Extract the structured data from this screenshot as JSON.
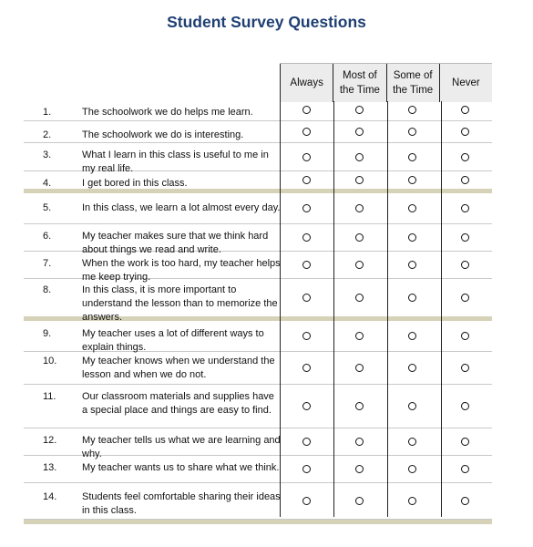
{
  "title": "Student Survey Questions",
  "columns": [
    {
      "line1": "Always",
      "line2": ""
    },
    {
      "line1": "Most of",
      "line2": "the Time"
    },
    {
      "line1": "Some of",
      "line2": "the Time"
    },
    {
      "line1": "Never",
      "line2": ""
    }
  ],
  "questions": [
    {
      "num": "1.",
      "text": "The schoolwork we do helps me learn."
    },
    {
      "num": "2.",
      "text": "The schoolwork we do is interesting."
    },
    {
      "num": "3.",
      "text": "What I learn in this class is useful to me in my real life."
    },
    {
      "num": "4.",
      "text": "I get bored in this class."
    },
    {
      "num": "5.",
      "text": "In this class, we learn a lot almost every day."
    },
    {
      "num": "6.",
      "text": "My teacher makes sure that we think hard about things we read and write."
    },
    {
      "num": "7.",
      "text": "When the work is too hard, my teacher helps me keep trying."
    },
    {
      "num": "8.",
      "text": "In this class, it is more important to understand the lesson than to memorize the answers."
    },
    {
      "num": "9.",
      "text": "My teacher uses a lot of different ways to explain things."
    },
    {
      "num": "10.",
      "text": "My teacher knows when we understand the lesson and when we do not."
    },
    {
      "num": "11.",
      "text": "Our classroom materials and supplies have a special place and things are easy to find."
    },
    {
      "num": "12.",
      "text": "My teacher tells us what we are learning and why."
    },
    {
      "num": "13.",
      "text": "My teacher wants us to share what we think."
    },
    {
      "num": "14.",
      "text": "Students feel comfortable sharing their ideas in this class."
    }
  ]
}
